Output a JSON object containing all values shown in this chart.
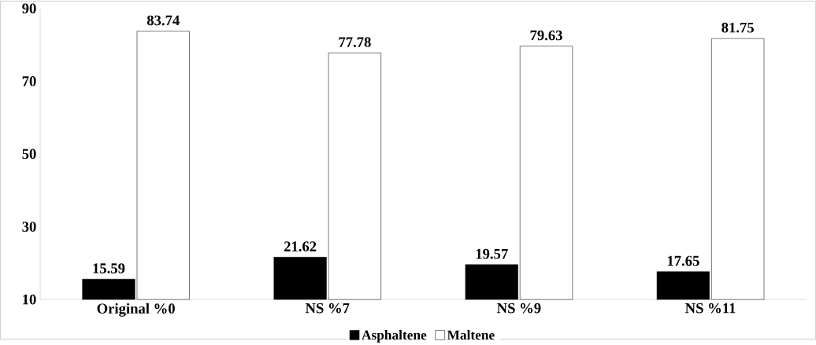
{
  "chart_data": {
    "type": "bar",
    "categories": [
      "Original %0",
      "NS %7",
      "NS %9",
      "NS %11"
    ],
    "series": [
      {
        "name": "Asphaltene",
        "color": "#000000",
        "values": [
          15.59,
          21.62,
          19.57,
          17.65
        ]
      },
      {
        "name": "Maltene",
        "color": "#ffffff",
        "values": [
          83.74,
          77.78,
          79.63,
          81.75
        ]
      }
    ],
    "ylim": [
      10,
      90
    ],
    "yticks": [
      10,
      30,
      50,
      70,
      90
    ],
    "data_labels": true,
    "legend": "bottom",
    "grid": false
  }
}
